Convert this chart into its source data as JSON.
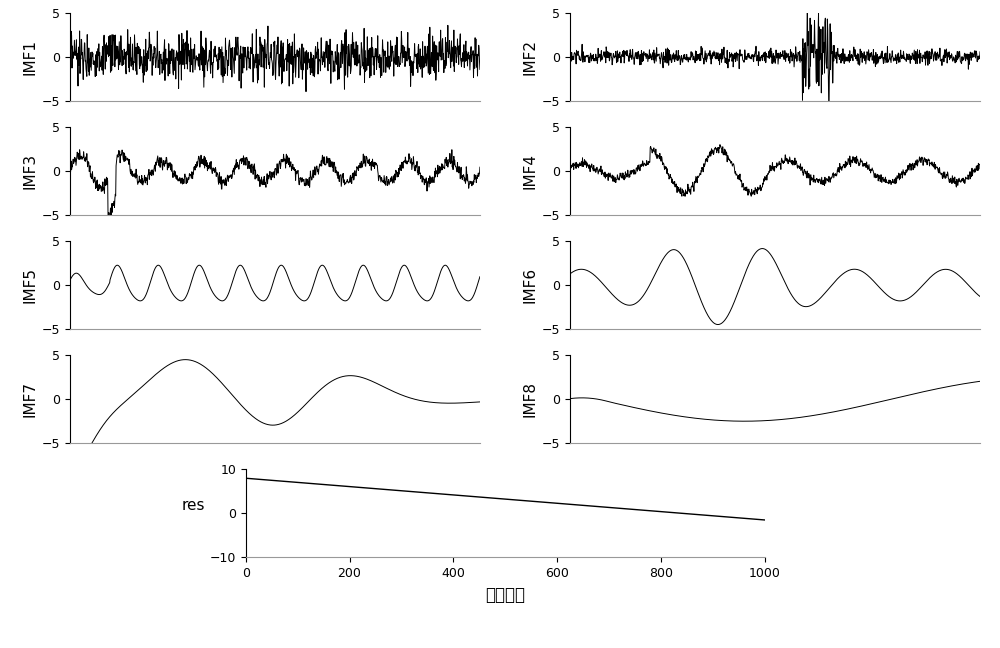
{
  "n_samples": 1024,
  "ylim_imf": [
    -5,
    5
  ],
  "yticks_imf": [
    -5,
    0,
    5
  ],
  "ylim_res": [
    -10,
    10
  ],
  "yticks_res": [
    -10,
    0,
    10
  ],
  "xticks_res": [
    0,
    200,
    400,
    600,
    800,
    1000
  ],
  "xlabel": "采样点数",
  "res_ylabel": "res",
  "labels": [
    "IMF1",
    "IMF2",
    "IMF3",
    "IMF4",
    "IMF5",
    "IMF6",
    "IMF7",
    "IMF8"
  ],
  "line_color": "#000000",
  "line_width": 0.7,
  "background_color": "#ffffff",
  "font_size_label": 11,
  "font_size_tick": 9,
  "font_size_xlabel": 12
}
